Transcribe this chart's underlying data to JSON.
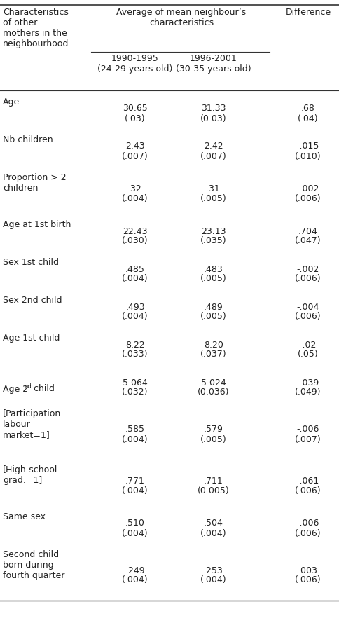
{
  "col0_header": "Characteristics\nof other\nmothers in the\nneighbourhood",
  "col12_header": "Average of mean neighbour’s\ncharacteristics",
  "col1_subheader": "1990-1995\n(24-29 years old)",
  "col2_subheader": "1996-2001\n(30-35 years old)",
  "col3_header": "Difference",
  "rows": [
    {
      "label": "Age",
      "label_super": null,
      "v1": "30.65",
      "se1": "(.03)",
      "v2": "31.33",
      "se2": "(0.03)",
      "d": ".68",
      "sed": "(.04)"
    },
    {
      "label": "Nb children",
      "label_super": null,
      "v1": "2.43",
      "se1": "(.007)",
      "v2": "2.42",
      "se2": "(.007)",
      "d": "-.015",
      "sed": "(.010)"
    },
    {
      "label": "Proportion > 2\nchildren",
      "label_super": null,
      "v1": ".32",
      "se1": "(.004)",
      "v2": ".31",
      "se2": "(.005)",
      "d": "-.002",
      "sed": "(.006)"
    },
    {
      "label": "Age at 1st birth",
      "label_super": null,
      "v1": "22.43",
      "se1": "(.030)",
      "v2": "23.13",
      "se2": "(.035)",
      "d": ".704",
      "sed": "(.047)"
    },
    {
      "label": "Sex 1st child",
      "label_super": null,
      "v1": ".485",
      "se1": "(.004)",
      "v2": ".483",
      "se2": "(.005)",
      "d": "-.002",
      "sed": "(.006)"
    },
    {
      "label": "Sex 2nd child",
      "label_super": null,
      "v1": ".493",
      "se1": "(.004)",
      "v2": ".489",
      "se2": "(.005)",
      "d": "-.004",
      "sed": "(.006)"
    },
    {
      "label": "Age 1st child",
      "label_super": null,
      "v1": "8.22",
      "se1": "(.033)",
      "v2": "8.20",
      "se2": "(.037)",
      "d": "-.02",
      "sed": "(.05)"
    },
    {
      "label": "Age 2",
      "label_super": "nd",
      "label_suffix": " child",
      "v1": "5.064",
      "se1": "(.032)",
      "v2": "5.024",
      "se2": "(0.036)",
      "d": "-.039",
      "sed": "(.049)"
    },
    {
      "label": "[Participation\nlabour\nmarket=1]",
      "label_super": null,
      "v1": ".585",
      "se1": "(.004)",
      "v2": ".579",
      "se2": "(.005)",
      "d": "-.006",
      "sed": "(.007)"
    },
    {
      "label": "[High-school\ngrad.=1]",
      "label_super": null,
      "v1": ".771",
      "se1": "(.004)",
      "v2": ".711",
      "se2": "(0.005)",
      "d": "-.061",
      "sed": "(.006)"
    },
    {
      "label": "Same sex",
      "label_super": null,
      "v1": ".510",
      "se1": "(.004)",
      "v2": ".504",
      "se2": "(.004)",
      "d": "-.006",
      "sed": "(.006)"
    },
    {
      "label": "Second child\nborn during\nfourth quarter",
      "label_super": null,
      "v1": ".249",
      "se1": "(.004)",
      "v2": ".253",
      "se2": "(.004)",
      "d": ".003",
      "sed": "(.006)"
    }
  ],
  "bg_color": "#ffffff",
  "text_color": "#222222",
  "font_size": 9.0,
  "line_color": "#333333"
}
